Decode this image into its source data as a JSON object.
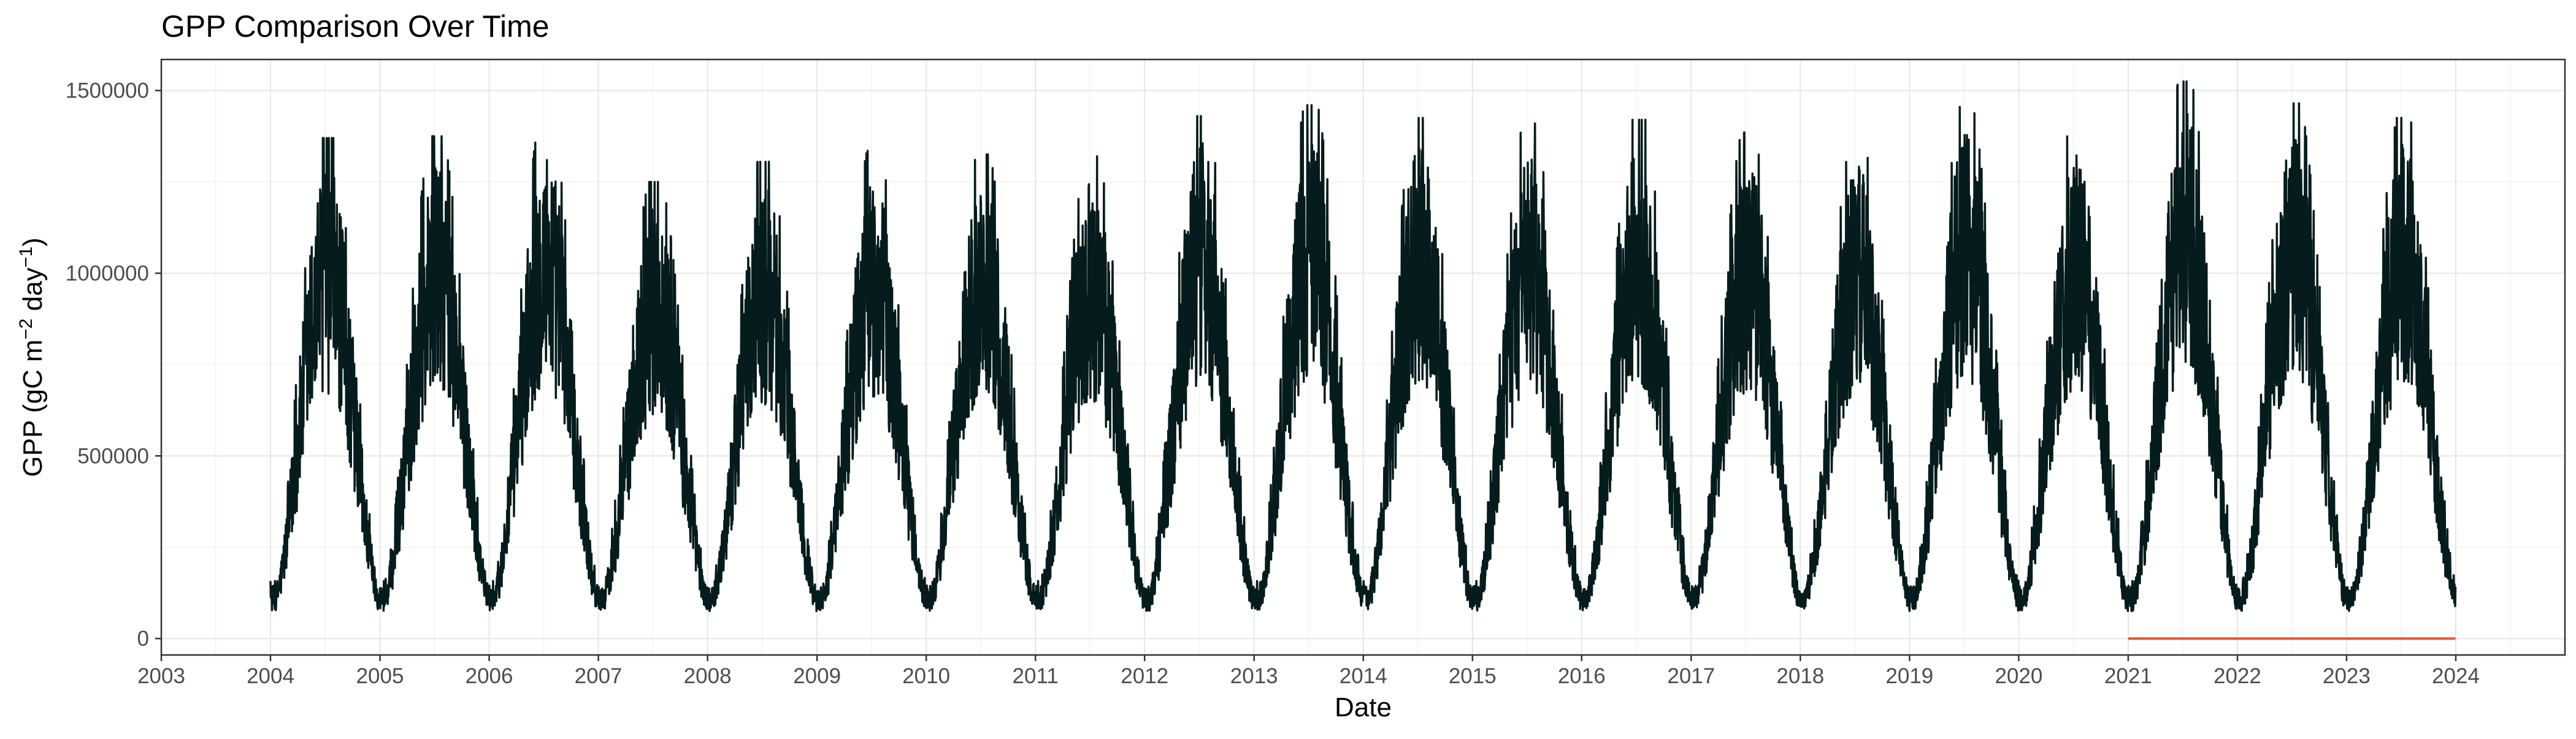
{
  "chart_data": {
    "type": "line",
    "title": "GPP Comparison Over Time",
    "xlabel": "Date",
    "ylabel": {
      "base": "GPP (gC m",
      "sup1": "−2",
      "mid": " day",
      "sup2": "−1",
      "end": ")"
    },
    "xlim": [
      "2003-01-01",
      "2024-12-31"
    ],
    "ylim": [
      -45000,
      1585000
    ],
    "x_ticks": [
      "2003",
      "2004",
      "2005",
      "2006",
      "2007",
      "2008",
      "2009",
      "2010",
      "2011",
      "2012",
      "2013",
      "2014",
      "2015",
      "2016",
      "2017",
      "2018",
      "2019",
      "2020",
      "2021",
      "2022",
      "2023",
      "2024"
    ],
    "y_ticks": [
      0,
      500000,
      1000000,
      1500000
    ],
    "y_tick_labels": [
      "0",
      "500000",
      "1000000",
      "1500000"
    ],
    "grid": true,
    "theme": "bw",
    "colors": {
      "series_main": "#051b1c",
      "series_secondary": "#e8562e",
      "grid_major": "#e6e6e6",
      "grid_minor": "#f2f2f2",
      "panel_border": "#333333",
      "axis_text": "#4d4d4d",
      "title_text": "#000000"
    },
    "series": [
      {
        "kind": "daily-seasonal",
        "color": "#051b1c",
        "x_start": "2004-01-01",
        "x_end": "2023-12-31",
        "annual_peaks": [
          {
            "year": 2004,
            "peak": 1370000
          },
          {
            "year": 2005,
            "peak": 1375000
          },
          {
            "year": 2006,
            "peak": 1420000
          },
          {
            "year": 2007,
            "peak": 1250000
          },
          {
            "year": 2008,
            "peak": 1305000
          },
          {
            "year": 2009,
            "peak": 1335000
          },
          {
            "year": 2010,
            "peak": 1325000
          },
          {
            "year": 2011,
            "peak": 1320000
          },
          {
            "year": 2012,
            "peak": 1430000
          },
          {
            "year": 2013,
            "peak": 1460000
          },
          {
            "year": 2014,
            "peak": 1425000
          },
          {
            "year": 2015,
            "peak": 1410000
          },
          {
            "year": 2016,
            "peak": 1420000
          },
          {
            "year": 2017,
            "peak": 1385000
          },
          {
            "year": 2018,
            "peak": 1370000
          },
          {
            "year": 2019,
            "peak": 1455000
          },
          {
            "year": 2020,
            "peak": 1395000
          },
          {
            "year": 2021,
            "peak": 1525000
          },
          {
            "year": 2022,
            "peak": 1465000
          },
          {
            "year": 2023,
            "peak": 1425000
          }
        ],
        "winter_base": 110000,
        "noise_amplitude": 0.32
      },
      {
        "kind": "constant",
        "color": "#e8562e",
        "x": [
          "2021-01-01",
          "2023-12-31"
        ],
        "values": [
          0,
          0
        ]
      }
    ]
  }
}
